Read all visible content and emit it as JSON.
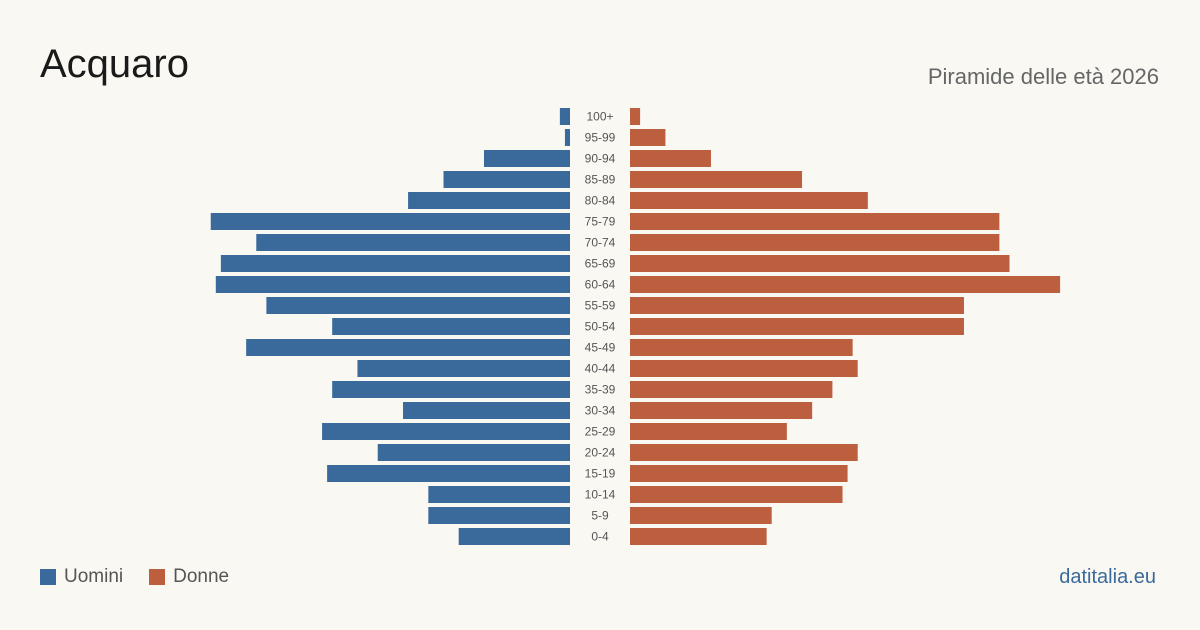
{
  "header": {
    "title": "Acquaro",
    "subtitle": "Piramide delle età 2026"
  },
  "legend": {
    "men_label": "Uomini",
    "women_label": "Donne"
  },
  "brand": {
    "text": "datitalia.eu"
  },
  "colors": {
    "men": "#3a6a9b",
    "women": "#bb5f3e",
    "background": "#faf8f3"
  },
  "chart_data": {
    "type": "bar",
    "orientation": "horizontal-pyramid",
    "categories": [
      "100+",
      "95-99",
      "90-94",
      "85-89",
      "80-84",
      "75-79",
      "70-74",
      "65-69",
      "60-64",
      "55-59",
      "50-54",
      "45-49",
      "40-44",
      "35-39",
      "30-34",
      "25-29",
      "20-24",
      "15-19",
      "10-14",
      "5-9",
      "0-4"
    ],
    "series": [
      {
        "name": "Uomini",
        "values": [
          2,
          1,
          17,
          25,
          32,
          71,
          62,
          69,
          70,
          60,
          47,
          64,
          42,
          47,
          33,
          49,
          38,
          48,
          28,
          28,
          22
        ]
      },
      {
        "name": "Donne",
        "values": [
          2,
          7,
          16,
          34,
          47,
          73,
          73,
          75,
          85,
          66,
          66,
          44,
          45,
          40,
          36,
          31,
          45,
          43,
          42,
          28,
          27
        ]
      }
    ],
    "title": "Acquaro",
    "subtitle": "Piramide delle età 2026",
    "legend_position": "bottom-left",
    "grid": false
  }
}
